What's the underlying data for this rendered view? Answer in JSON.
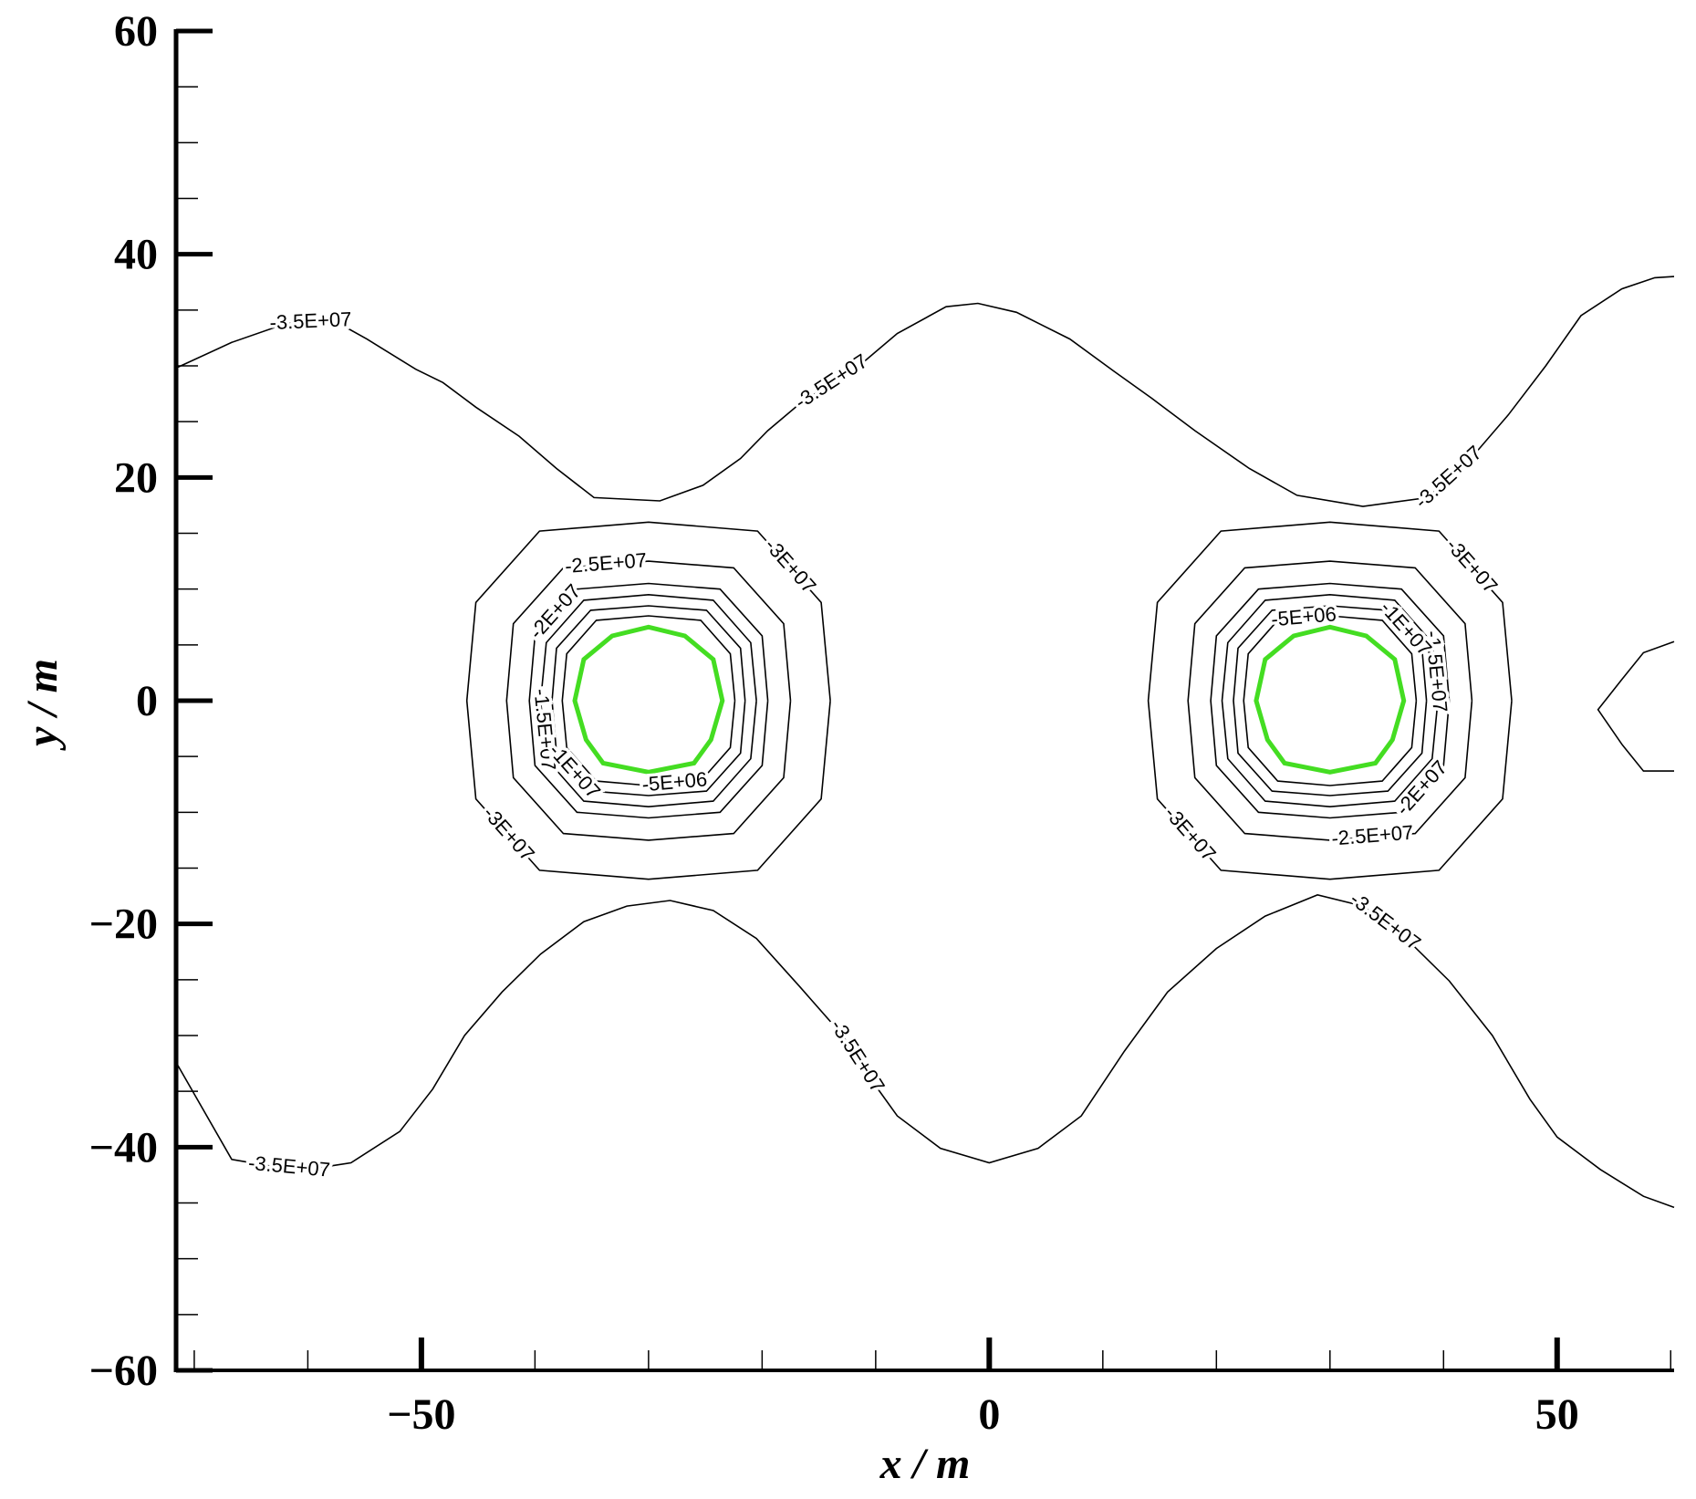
{
  "chart_data": {
    "type": "contour",
    "x_label": "x / m",
    "y_label": "y / m",
    "xlim": [
      -71.6,
      60.3
    ],
    "ylim": [
      -60,
      60
    ],
    "xticks": [
      {
        "value": -50,
        "label": "−50"
      },
      0,
      50
    ],
    "yticks": [
      {
        "value": -60,
        "label": "−60"
      },
      {
        "value": -40,
        "label": "−40"
      },
      {
        "value": -20,
        "label": "−20"
      },
      0,
      20,
      40,
      60
    ],
    "xminorticks": [
      -70,
      -60,
      -40,
      -30,
      -20,
      -10,
      10,
      20,
      30,
      40,
      60
    ],
    "yminorticks": [
      -55,
      -50,
      -45,
      -35,
      -30,
      -25,
      -15,
      -10,
      -5,
      5,
      10,
      15,
      25,
      30,
      35,
      45,
      50,
      55
    ],
    "line_color": "#000000",
    "contours": [
      {
        "label": "-3.5E+07",
        "lines": [
          {
            "x": [
              -71.6,
              -66.7,
              -61.9,
              -57.6,
              -54.8,
              -50.5,
              -48.1,
              -45.2,
              -41.4,
              -38.1,
              -34.8,
              -29.0,
              -25.2,
              -21.9,
              -19.5,
              -16.7,
              -11.0,
              -8.1,
              -3.8,
              -1.0,
              2.4,
              7.1,
              11.0,
              14.3,
              18.1,
              22.9,
              27.1,
              32.9,
              38.6,
              42.4,
              45.7,
              49.0,
              52.1,
              55.7,
              58.6,
              60.3
            ],
            "y": [
              29.8,
              32.1,
              33.8,
              34.0,
              32.4,
              29.7,
              28.5,
              26.3,
              23.7,
              20.8,
              18.2,
              17.9,
              19.3,
              21.7,
              24.2,
              26.6,
              30.4,
              32.9,
              35.3,
              35.6,
              34.8,
              32.4,
              29.5,
              27.1,
              24.2,
              20.8,
              18.4,
              17.4,
              18.2,
              21.7,
              25.6,
              30.0,
              34.5,
              36.9,
              37.9,
              38.0
            ]
          },
          {
            "x": [
              -71.6,
              -66.7,
              -63.3,
              -60.0,
              -56.2,
              -51.9,
              -49.0,
              -46.2,
              -42.9,
              -39.5,
              -35.7,
              -31.9,
              -28.1,
              -24.3,
              -20.5,
              -16.7,
              -12.9,
              -10.5,
              -8.1,
              -4.3,
              0,
              4.3,
              8.1,
              11.9,
              15.7,
              20.0,
              24.3,
              28.9,
              32.9,
              36.7,
              40.5,
              44.3,
              47.6,
              50,
              53.8,
              57.6,
              60.3
            ],
            "y": [
              -32.4,
              -41.1,
              -41.7,
              -42.0,
              -41.4,
              -38.6,
              -34.8,
              -30.0,
              -26.1,
              -22.7,
              -19.8,
              -18.4,
              -17.9,
              -18.8,
              -21.3,
              -25.6,
              -30.0,
              -33.8,
              -37.2,
              -40.1,
              -41.4,
              -40.1,
              -37.2,
              -31.4,
              -26.1,
              -22.2,
              -19.3,
              -17.4,
              -18.4,
              -21.3,
              -25.1,
              -30.0,
              -35.7,
              -39.1,
              -42.0,
              -44.4,
              -45.4
            ]
          },
          {
            "x": [
              60.3,
              57.6,
              55.7,
              53.6,
              55.7,
              57.6,
              60.3
            ],
            "y": [
              5.3,
              4.3,
              1.9,
              -0.8,
              -3.9,
              -6.3,
              -6.3
            ]
          }
        ]
      },
      {
        "label": "-3E+07",
        "lines": [
          {
            "x": [
              -14,
              -14.8,
              -20.4,
              -30,
              -39.6,
              -45.2,
              -46,
              -45.2,
              -39.6,
              -30,
              -20.4,
              -14.8,
              -14
            ],
            "y": [
              0,
              8.8,
              15.2,
              16,
              15.2,
              8.8,
              0,
              -8.8,
              -15.2,
              -16,
              -15.2,
              -8.8,
              0
            ]
          },
          {
            "x": [
              46,
              45.2,
              39.6,
              30,
              20.4,
              14.8,
              14,
              14.8,
              20.4,
              30,
              39.6,
              45.2,
              46
            ],
            "y": [
              0,
              8.8,
              15.2,
              16,
              15.2,
              8.8,
              0,
              -8.8,
              -15.2,
              -16,
              -15.2,
              -8.8,
              0
            ]
          }
        ]
      },
      {
        "label": "-2.5E+07",
        "lines": [
          {
            "x": [
              -17.5,
              -18.1,
              -22.5,
              -30,
              -37.5,
              -41.9,
              -42.5,
              -41.9,
              -37.5,
              -30,
              -22.5,
              -18.1,
              -17.5
            ],
            "y": [
              0,
              6.9,
              11.9,
              12.5,
              11.9,
              6.9,
              0,
              -6.9,
              -11.9,
              -12.5,
              -11.9,
              -6.9,
              0
            ]
          },
          {
            "x": [
              42.5,
              41.9,
              37.5,
              30,
              22.5,
              18.1,
              17.5,
              18.1,
              22.5,
              30,
              37.5,
              41.9,
              42.5
            ],
            "y": [
              0,
              6.9,
              11.9,
              12.5,
              11.9,
              6.9,
              0,
              -6.9,
              -11.9,
              -12.5,
              -11.9,
              -6.9,
              0
            ]
          }
        ]
      },
      {
        "label": "-2E+07",
        "lines": [
          {
            "x": [
              -19.5,
              -20,
              -23.7,
              -30,
              -36.3,
              -40,
              -40.5,
              -40,
              -36.3,
              -30,
              -23.7,
              -20,
              -19.5
            ],
            "y": [
              0,
              5.8,
              10,
              10.5,
              10,
              5.8,
              0,
              -5.8,
              -10,
              -10.5,
              -10,
              -5.8,
              0
            ]
          },
          {
            "x": [
              40.5,
              40,
              36.3,
              30,
              23.7,
              20,
              19.5,
              20,
              23.7,
              30,
              36.3,
              40,
              40.5
            ],
            "y": [
              0,
              5.8,
              10,
              10.5,
              10,
              5.8,
              0,
              -5.8,
              -10,
              -10.5,
              -10,
              -5.8,
              0
            ]
          }
        ]
      },
      {
        "label": "-1.5E+07",
        "lines": [
          {
            "x": [
              -20.5,
              -21,
              -24.3,
              -30,
              -35.7,
              -39,
              -39.5,
              -39,
              -35.7,
              -30,
              -24.3,
              -21,
              -20.5
            ],
            "y": [
              0,
              5.2,
              9,
              9.5,
              9,
              5.2,
              0,
              -5.2,
              -9,
              -9.5,
              -9,
              -5.2,
              0
            ]
          },
          {
            "x": [
              39.5,
              39,
              35.7,
              30,
              24.3,
              21,
              20.5,
              21,
              24.3,
              30,
              35.7,
              39,
              39.5
            ],
            "y": [
              0,
              5.2,
              9,
              9.5,
              9,
              5.2,
              0,
              -5.2,
              -9,
              -9.5,
              -9,
              -5.2,
              0
            ]
          }
        ]
      },
      {
        "label": "-1E+07",
        "lines": [
          {
            "x": [
              -21.5,
              -21.9,
              -24.9,
              -30,
              -35.1,
              -38.1,
              -38.5,
              -38.1,
              -35.1,
              -30,
              -24.9,
              -21.9,
              -21.5
            ],
            "y": [
              0,
              4.7,
              8.1,
              8.5,
              8.1,
              4.7,
              0,
              -4.7,
              -8.1,
              -8.5,
              -8.1,
              -4.7,
              0
            ]
          },
          {
            "x": [
              38.5,
              38.1,
              35.1,
              30,
              24.9,
              21.9,
              21.5,
              21.9,
              24.9,
              30,
              35.1,
              38.1,
              38.5
            ],
            "y": [
              0,
              4.7,
              8.1,
              8.5,
              8.1,
              4.7,
              0,
              -4.7,
              -8.1,
              -8.5,
              -8.1,
              -4.7,
              0
            ]
          }
        ]
      },
      {
        "label": "-5E+06",
        "lines": [
          {
            "x": [
              -22.4,
              -22.8,
              -25.4,
              -30,
              -34.6,
              -37.2,
              -37.6,
              -37.2,
              -34.6,
              -30,
              -25.4,
              -22.8,
              -22.4
            ],
            "y": [
              0,
              4.2,
              7.2,
              7.6,
              7.2,
              4.2,
              0,
              -4.2,
              -7.2,
              -7.6,
              -7.2,
              -4.2,
              0
            ]
          },
          {
            "x": [
              37.6,
              37.2,
              34.6,
              30,
              25.4,
              22.8,
              22.4,
              22.8,
              25.4,
              30,
              34.6,
              37.2,
              37.6
            ],
            "y": [
              0,
              4.2,
              7.2,
              7.6,
              7.2,
              4.2,
              0,
              -4.2,
              -7.2,
              -7.6,
              -7.2,
              -4.2,
              0
            ]
          }
        ]
      }
    ],
    "boundary_color": "#44dd22",
    "boundaries": [
      {
        "x": [
          -23.5,
          -24.3,
          -26.8,
          -30,
          -33.2,
          -35.7,
          -36.5,
          -35.5,
          -34,
          -30,
          -26,
          -24.5,
          -23.5
        ],
        "y": [
          0,
          3.7,
          5.8,
          6.6,
          5.8,
          3.7,
          0,
          -3.5,
          -5.6,
          -6.4,
          -5.6,
          -3.5,
          0
        ]
      },
      {
        "x": [
          36.5,
          35.7,
          33.2,
          30,
          26.8,
          24.3,
          23.5,
          24.5,
          26,
          30,
          34,
          35.5,
          36.5
        ],
        "y": [
          0,
          3.7,
          5.8,
          6.6,
          5.8,
          3.7,
          0,
          -3.5,
          -5.6,
          -6.4,
          -5.6,
          -3.5,
          0
        ]
      }
    ]
  }
}
